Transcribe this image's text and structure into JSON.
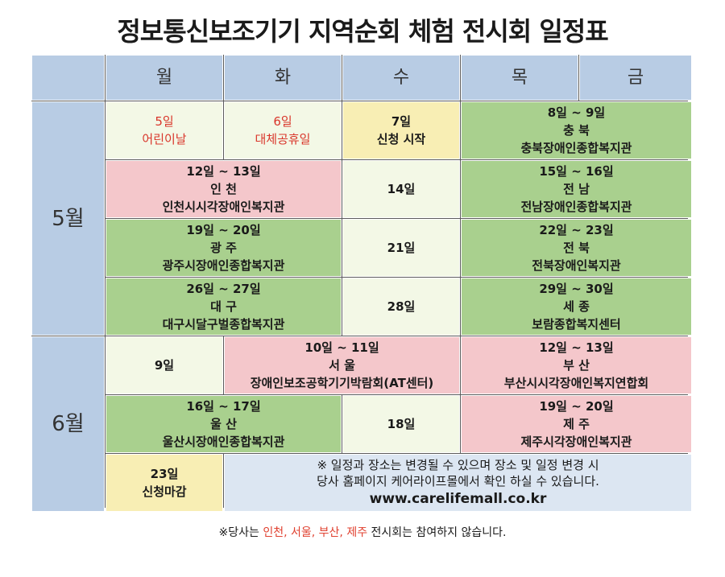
{
  "title": "정보통신보조기기 지역순회 체험 전시회 일정표",
  "weekdays": [
    "월",
    "화",
    "수",
    "목",
    "금"
  ],
  "months": {
    "may": "5월",
    "june": "6월"
  },
  "may": {
    "w1": {
      "mon": {
        "day": "5일",
        "note": "어린이날"
      },
      "tue": {
        "day": "6일",
        "note": "대체공휴일"
      },
      "wed": {
        "day": "7일",
        "note": "신청 시작"
      },
      "thu_fri": {
        "dates": "8일 ~ 9일",
        "region": "충 북",
        "venue": "충북장애인종합복지관"
      }
    },
    "w2": {
      "mon_tue": {
        "dates": "12일 ~ 13일",
        "region": "인 천",
        "venue": "인천시시각장애인복지관"
      },
      "wed": {
        "day": "14일"
      },
      "thu_fri": {
        "dates": "15일 ~ 16일",
        "region": "전 남",
        "venue": "전남장애인종합복지관"
      }
    },
    "w3": {
      "mon_tue": {
        "dates": "19일 ~ 20일",
        "region": "광 주",
        "venue": "광주시장애인종합복지관"
      },
      "wed": {
        "day": "21일"
      },
      "thu_fri": {
        "dates": "22일 ~ 23일",
        "region": "전 북",
        "venue": "전북장애인복지관"
      }
    },
    "w4": {
      "mon_tue": {
        "dates": "26일 ~ 27일",
        "region": "대 구",
        "venue": "대구시달구벌종합복지관"
      },
      "wed": {
        "day": "28일"
      },
      "thu_fri": {
        "dates": "29일 ~ 30일",
        "region": "세 종",
        "venue": "보람종합복지센터"
      }
    }
  },
  "june": {
    "w1": {
      "mon": {
        "day": "9일"
      },
      "tue_wed": {
        "dates": "10일 ~ 11일",
        "region": "서 울",
        "venue": "장애인보조공학기기박람회(AT센터)"
      },
      "thu_fri": {
        "dates": "12일 ~ 13일",
        "region": "부 산",
        "venue": "부산시시각장애인복지연합회"
      }
    },
    "w2": {
      "mon_tue": {
        "dates": "16일 ~ 17일",
        "region": "울 산",
        "venue": "울산시장애인종합복지관"
      },
      "wed": {
        "day": "18일"
      },
      "thu_fri": {
        "dates": "19일 ~ 20일",
        "region": "제 주",
        "venue": "제주시각장애인복지관"
      }
    },
    "w3": {
      "mon": {
        "day": "23일",
        "note": "신청마감"
      },
      "notice": {
        "line1": "※ 일정과 장소는 변경될 수 있으며 장소 및 일정 변경 시",
        "line2": "당사 홈페이지 케어라이프몰에서 확인 하실 수 있습니다.",
        "url": "www.carelifemall.co.kr"
      }
    }
  },
  "footnote": {
    "prefix": "※당사는 ",
    "highlight": "인천, 서울, 부산, 제주",
    "suffix": " 전시회는 참여하지 않습니다."
  },
  "colors": {
    "header": "#b8cce4",
    "event_green": "#a9d08e",
    "event_pink": "#f4c7cb",
    "empty_day": "#f3f8e6",
    "deadline_yellow": "#f8eeb4",
    "notice_blue": "#dce6f2",
    "holiday_red": "#d9362b"
  }
}
